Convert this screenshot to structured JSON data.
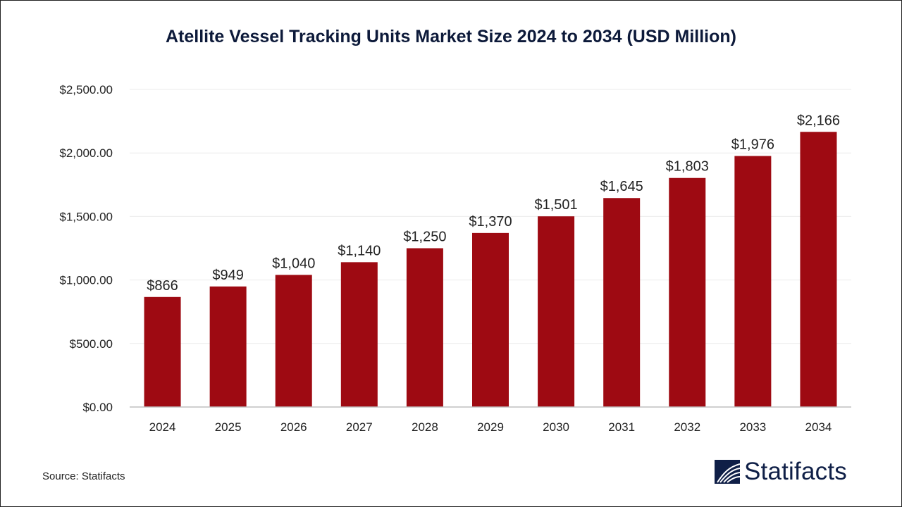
{
  "chart_data": {
    "type": "bar",
    "title": "Atellite Vessel Tracking Units Market Size 2024 to 2034 (USD Million)",
    "categories": [
      "2024",
      "2025",
      "2026",
      "2027",
      "2028",
      "2029",
      "2030",
      "2031",
      "2032",
      "2033",
      "2034"
    ],
    "values": [
      866,
      949,
      1040,
      1140,
      1250,
      1370,
      1501,
      1645,
      1803,
      1976,
      2166
    ],
    "data_labels": [
      "$866",
      "$949",
      "$1,040",
      "$1,140",
      "$1,250",
      "$1,370",
      "$1,501",
      "$1,645",
      "$1,803",
      "$1,976",
      "$2,166"
    ],
    "yticks": [
      "$0.00",
      "$500.00",
      "$1,000.00",
      "$1,500.00",
      "$2,000.00",
      "$2,500.00"
    ],
    "ylim": [
      0,
      2500
    ],
    "grid": true,
    "xlabel": "",
    "ylabel": "",
    "bar_color": "#9e0a12"
  },
  "source": "Source: Statifacts",
  "logo": {
    "text": "Statifacts",
    "color": "#0f1f47"
  }
}
